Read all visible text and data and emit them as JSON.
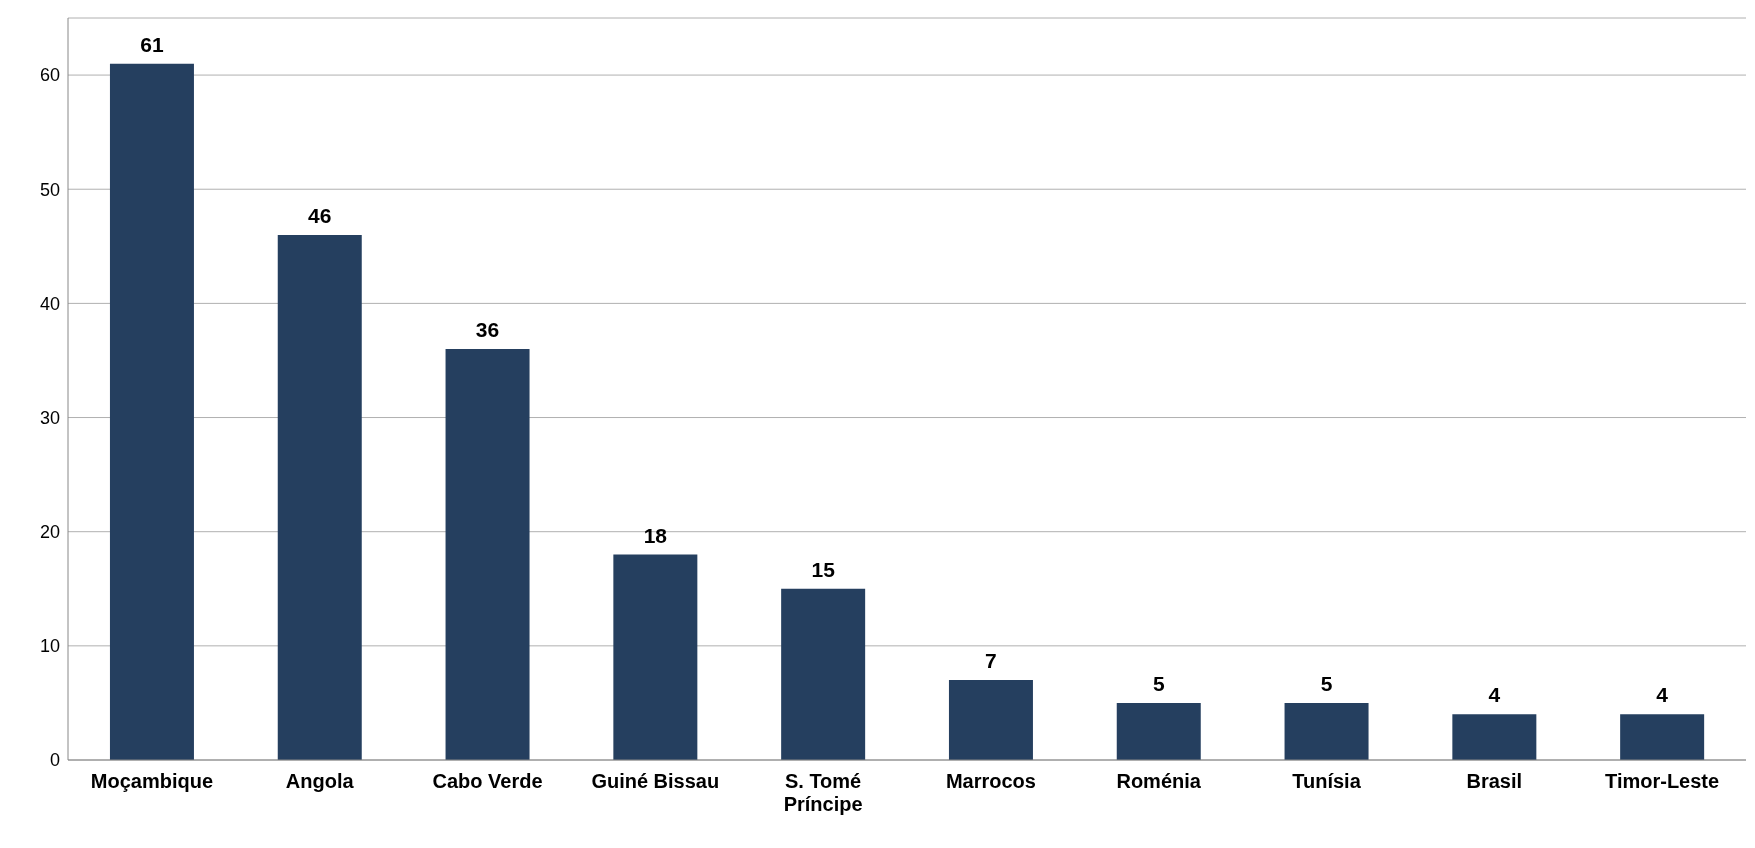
{
  "chart_data": {
    "type": "bar",
    "categories": [
      "Moçambique",
      "Angola",
      "Cabo Verde",
      "Guiné Bissau",
      "S. Tomé Príncipe",
      "Marrocos",
      "Roménia",
      "Tunísia",
      "Brasil",
      "Timor-Leste"
    ],
    "values": [
      61,
      46,
      36,
      18,
      15,
      7,
      5,
      5,
      4,
      4
    ],
    "color": "#253f5f",
    "ylim": [
      0,
      65
    ],
    "yticks": [
      0,
      10,
      20,
      30,
      40,
      50,
      60
    ],
    "grid": "y",
    "data_labels": true
  }
}
